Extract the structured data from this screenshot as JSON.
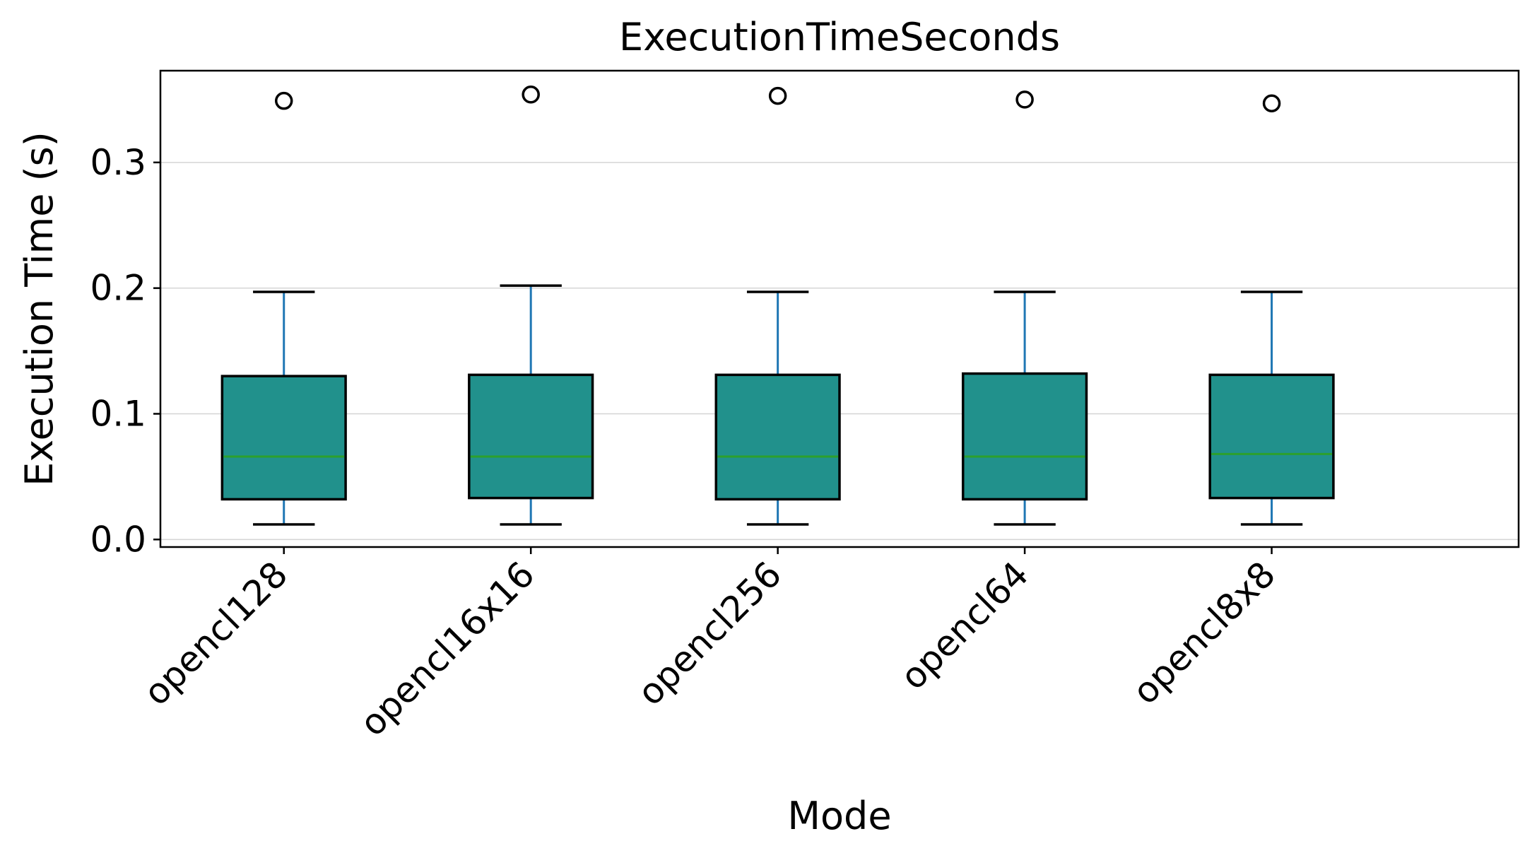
{
  "chart_data": {
    "type": "box",
    "title": "ExecutionTimeSeconds",
    "xlabel": "Mode",
    "ylabel": "Execution Time (s)",
    "ylim": [
      -0.006,
      0.373
    ],
    "yticks": [
      0.0,
      0.1,
      0.2,
      0.3
    ],
    "ytick_labels": [
      "0.0",
      "0.1",
      "0.2",
      "0.3"
    ],
    "grid": "horizontal",
    "categories": [
      "opencl128",
      "opencl16x16",
      "opencl256",
      "opencl64",
      "opencl8x8"
    ],
    "boxes": [
      {
        "whisker_low": 0.012,
        "q1": 0.032,
        "median": 0.066,
        "q3": 0.13,
        "whisker_high": 0.197,
        "fliers": [
          0.349
        ]
      },
      {
        "whisker_low": 0.012,
        "q1": 0.033,
        "median": 0.066,
        "q3": 0.131,
        "whisker_high": 0.202,
        "fliers": [
          0.354
        ]
      },
      {
        "whisker_low": 0.012,
        "q1": 0.032,
        "median": 0.066,
        "q3": 0.131,
        "whisker_high": 0.197,
        "fliers": [
          0.353
        ]
      },
      {
        "whisker_low": 0.012,
        "q1": 0.032,
        "median": 0.066,
        "q3": 0.132,
        "whisker_high": 0.197,
        "fliers": [
          0.35
        ]
      },
      {
        "whisker_low": 0.012,
        "q1": 0.033,
        "median": 0.068,
        "q3": 0.131,
        "whisker_high": 0.197,
        "fliers": [
          0.347
        ]
      }
    ],
    "colors": {
      "box_fill": "#21918c",
      "whisker": "#1f77b4",
      "median": "#2ca02c",
      "grid": "#d4d4d4"
    }
  }
}
